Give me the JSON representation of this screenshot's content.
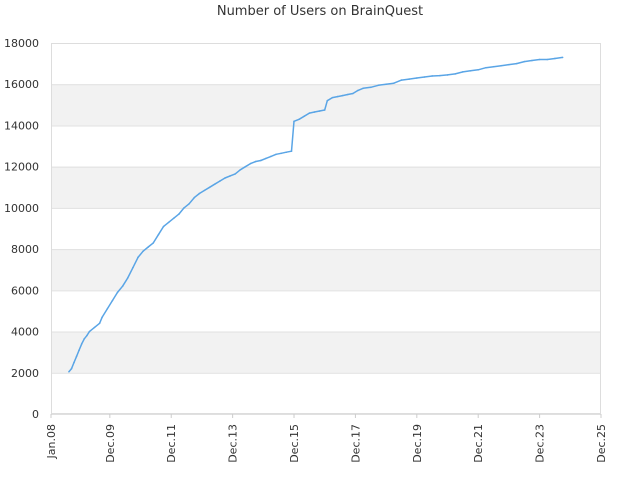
{
  "chart_data": {
    "type": "line",
    "title": "Number of Users on BrainQuest",
    "xlabel": "",
    "ylabel": "",
    "x_ticks": [
      "Jan.08",
      "Dec.09",
      "Dec.11",
      "Dec.13",
      "Dec.15",
      "Dec.17",
      "Dec.19",
      "Dec.21",
      "Dec.23",
      "Dec.25"
    ],
    "y_ticks": [
      "0",
      "2000",
      "4000",
      "6000",
      "8000",
      "10000",
      "12000",
      "14000",
      "16000",
      "18000"
    ],
    "ylim": [
      0,
      18000
    ],
    "xlim": [
      "2008-01",
      "2025-12"
    ],
    "grid": "horizontal bands",
    "legend": "none",
    "series": [
      {
        "color": "#5aa5e6",
        "points": [
          [
            "2008-08",
            2050
          ],
          [
            "2008-09",
            2200
          ],
          [
            "2008-10",
            2500
          ],
          [
            "2008-11",
            2800
          ],
          [
            "2008-12",
            3100
          ],
          [
            "2009-01",
            3400
          ],
          [
            "2009-02",
            3650
          ],
          [
            "2009-03",
            3800
          ],
          [
            "2009-04",
            4000
          ],
          [
            "2009-06",
            4200
          ],
          [
            "2009-08",
            4400
          ],
          [
            "2009-09",
            4700
          ],
          [
            "2009-11",
            5100
          ],
          [
            "2010-01",
            5500
          ],
          [
            "2010-03",
            5900
          ],
          [
            "2010-05",
            6200
          ],
          [
            "2010-07",
            6600
          ],
          [
            "2010-09",
            7100
          ],
          [
            "2010-11",
            7600
          ],
          [
            "2011-01",
            7900
          ],
          [
            "2011-03",
            8100
          ],
          [
            "2011-05",
            8300
          ],
          [
            "2011-07",
            8700
          ],
          [
            "2011-09",
            9100
          ],
          [
            "2011-11",
            9300
          ],
          [
            "2012-01",
            9500
          ],
          [
            "2012-03",
            9700
          ],
          [
            "2012-05",
            10000
          ],
          [
            "2012-07",
            10200
          ],
          [
            "2012-09",
            10500
          ],
          [
            "2012-11",
            10700
          ],
          [
            "2013-01",
            10850
          ],
          [
            "2013-03",
            11000
          ],
          [
            "2013-05",
            11150
          ],
          [
            "2013-07",
            11300
          ],
          [
            "2013-09",
            11450
          ],
          [
            "2013-11",
            11550
          ],
          [
            "2014-01",
            11650
          ],
          [
            "2014-03",
            11850
          ],
          [
            "2014-05",
            12000
          ],
          [
            "2014-07",
            12150
          ],
          [
            "2014-09",
            12250
          ],
          [
            "2014-11",
            12300
          ],
          [
            "2015-01",
            12400
          ],
          [
            "2015-03",
            12500
          ],
          [
            "2015-05",
            12600
          ],
          [
            "2015-07",
            12650
          ],
          [
            "2015-09",
            12700
          ],
          [
            "2015-11",
            12750
          ],
          [
            "2015-12",
            14200
          ],
          [
            "2016-02",
            14300
          ],
          [
            "2016-04",
            14450
          ],
          [
            "2016-06",
            14600
          ],
          [
            "2016-08",
            14650
          ],
          [
            "2016-10",
            14700
          ],
          [
            "2016-12",
            14750
          ],
          [
            "2017-01",
            15200
          ],
          [
            "2017-03",
            15350
          ],
          [
            "2017-05",
            15400
          ],
          [
            "2017-07",
            15450
          ],
          [
            "2017-09",
            15500
          ],
          [
            "2017-11",
            15550
          ],
          [
            "2018-01",
            15700
          ],
          [
            "2018-03",
            15800
          ],
          [
            "2018-06",
            15850
          ],
          [
            "2018-09",
            15950
          ],
          [
            "2018-12",
            16000
          ],
          [
            "2019-03",
            16050
          ],
          [
            "2019-06",
            16200
          ],
          [
            "2019-09",
            16250
          ],
          [
            "2019-12",
            16300
          ],
          [
            "2020-03",
            16350
          ],
          [
            "2020-06",
            16400
          ],
          [
            "2020-09",
            16420
          ],
          [
            "2020-12",
            16450
          ],
          [
            "2021-03",
            16500
          ],
          [
            "2021-06",
            16600
          ],
          [
            "2021-09",
            16650
          ],
          [
            "2021-12",
            16700
          ],
          [
            "2022-03",
            16800
          ],
          [
            "2022-06",
            16850
          ],
          [
            "2022-09",
            16900
          ],
          [
            "2022-12",
            16950
          ],
          [
            "2023-03",
            17000
          ],
          [
            "2023-06",
            17100
          ],
          [
            "2023-09",
            17150
          ],
          [
            "2023-12",
            17200
          ],
          [
            "2024-03",
            17200
          ],
          [
            "2024-06",
            17250
          ],
          [
            "2024-09",
            17300
          ]
        ]
      }
    ]
  }
}
